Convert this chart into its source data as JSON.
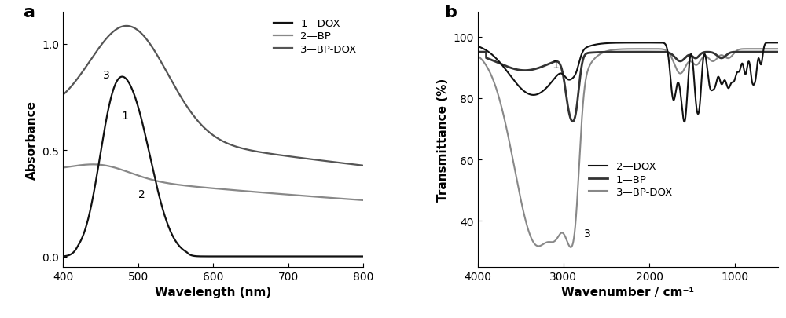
{
  "panel_a": {
    "xlabel": "Wavelength (nm)",
    "ylabel": "Absorbance",
    "xlim": [
      400,
      800
    ],
    "ylim": [
      -0.05,
      1.15
    ],
    "yticks": [
      0.0,
      0.5,
      1.0
    ],
    "xticks": [
      400,
      500,
      600,
      700,
      800
    ],
    "dox_color": "#111111",
    "bp_color": "#888888",
    "bpdox_color": "#555555",
    "lw": 1.6
  },
  "panel_b": {
    "xlabel": "Wavenumber / cm⁻¹",
    "ylabel": "Transmittance (%)",
    "xlim": [
      4000,
      500
    ],
    "ylim": [
      25,
      108
    ],
    "yticks": [
      40,
      60,
      80,
      100
    ],
    "xticks": [
      4000,
      3000,
      2000,
      1000
    ],
    "bp_color": "#333333",
    "dox_color": "#111111",
    "bpdox_color": "#888888",
    "bp_lw": 2.0,
    "dox_lw": 1.5,
    "bpdox_lw": 1.5
  }
}
